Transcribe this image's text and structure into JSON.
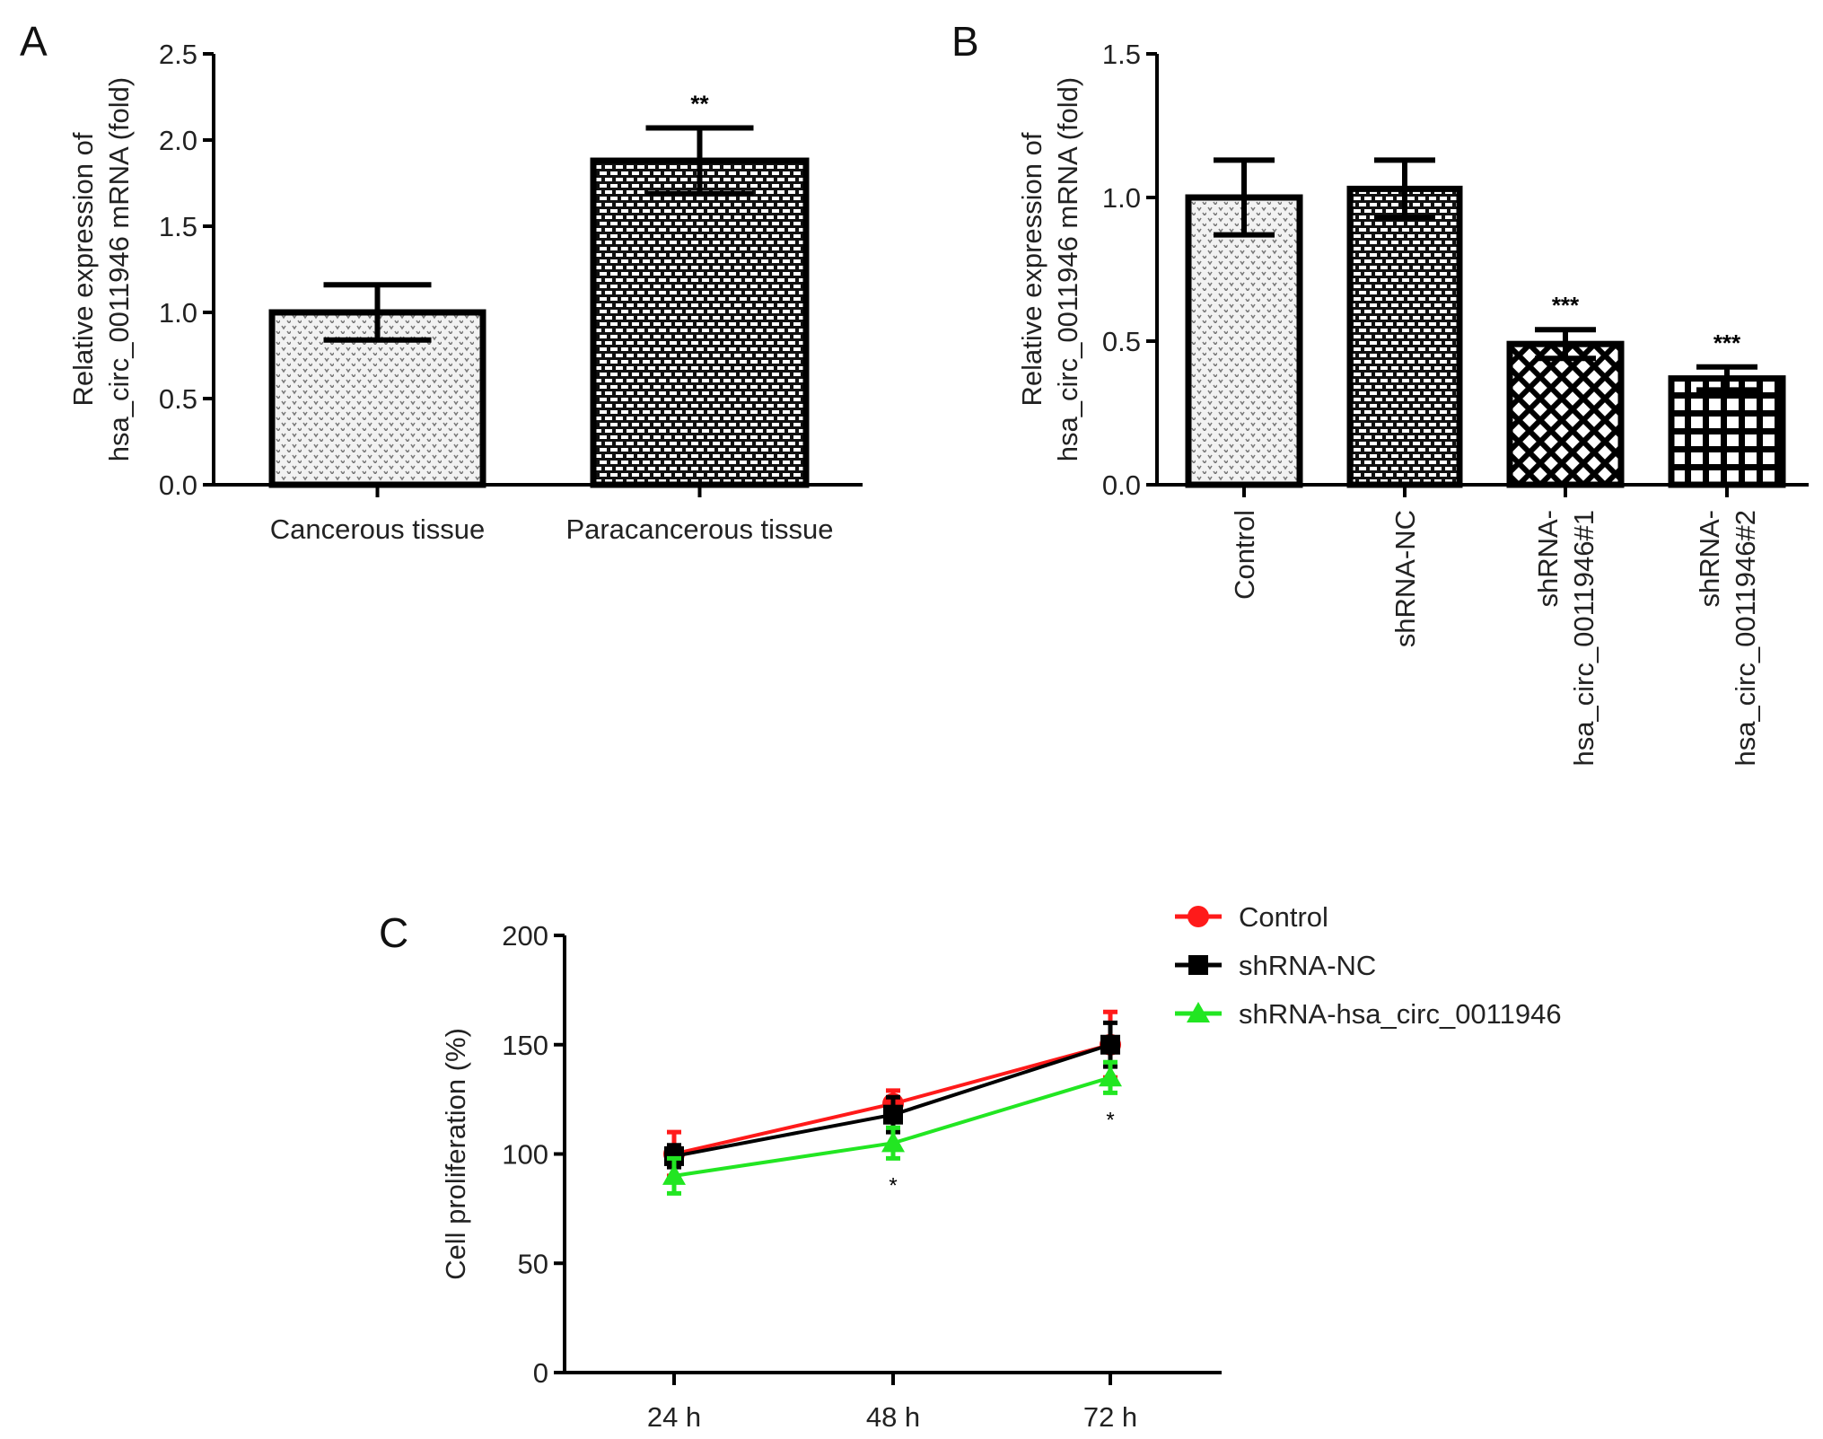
{
  "chart_data": [
    {
      "panel": "A",
      "type": "bar",
      "ylabel": [
        "Relative expression of",
        "hsa_circ_0011946 mRNA (fold)"
      ],
      "ylim": [
        0,
        2.5
      ],
      "yticks": [
        "0.0",
        "0.5",
        "1.0",
        "1.5",
        "2.0",
        "2.5"
      ],
      "categories": [
        "Cancerous tissue",
        "Paracancerous tissue"
      ],
      "values": [
        1.0,
        1.88
      ],
      "errors": [
        0.16,
        0.19
      ],
      "annotations": [
        "",
        "**"
      ],
      "patterns": [
        "dots",
        "brick"
      ]
    },
    {
      "panel": "B",
      "type": "bar",
      "ylabel": [
        "Relative expression of",
        "hsa_circ_0011946 mRNA (fold)"
      ],
      "ylim": [
        0,
        1.5
      ],
      "yticks": [
        "0.0",
        "0.5",
        "1.0",
        "1.5"
      ],
      "categories": [
        [
          "Control"
        ],
        [
          "shRNA-NC"
        ],
        [
          "shRNA-",
          "hsa_circ_0011946#1"
        ],
        [
          "shRNA-",
          "hsa_circ_0011946#2"
        ]
      ],
      "values": [
        1.0,
        1.03,
        0.49,
        0.37
      ],
      "errors": [
        0.13,
        0.1,
        0.05,
        0.04
      ],
      "annotations": [
        "",
        "",
        "***",
        "***"
      ],
      "patterns": [
        "dots",
        "brick",
        "crosshatch",
        "grid"
      ]
    },
    {
      "panel": "C",
      "type": "line",
      "ylabel": "Cell proliferation (%)",
      "ylim": [
        0,
        200
      ],
      "yticks": [
        "0",
        "50",
        "100",
        "150",
        "200"
      ],
      "x": [
        "24 h",
        "48 h",
        "72 h"
      ],
      "legend_position": "top-right",
      "series": [
        {
          "name": "Control",
          "color": "#ff1a1a",
          "marker": "circle",
          "values": [
            100,
            123,
            150
          ],
          "errors": [
            10,
            6,
            15
          ]
        },
        {
          "name": "shRNA-NC",
          "color": "#000000",
          "marker": "square",
          "values": [
            99,
            118,
            150
          ],
          "errors": [
            5,
            8,
            10
          ]
        },
        {
          "name": "shRNA-hsa_circ_0011946",
          "color": "#22e622",
          "marker": "triangle",
          "values": [
            90,
            105,
            135
          ],
          "errors": [
            8,
            7,
            7
          ]
        }
      ],
      "annotations": [
        "",
        "*",
        "*"
      ]
    }
  ]
}
